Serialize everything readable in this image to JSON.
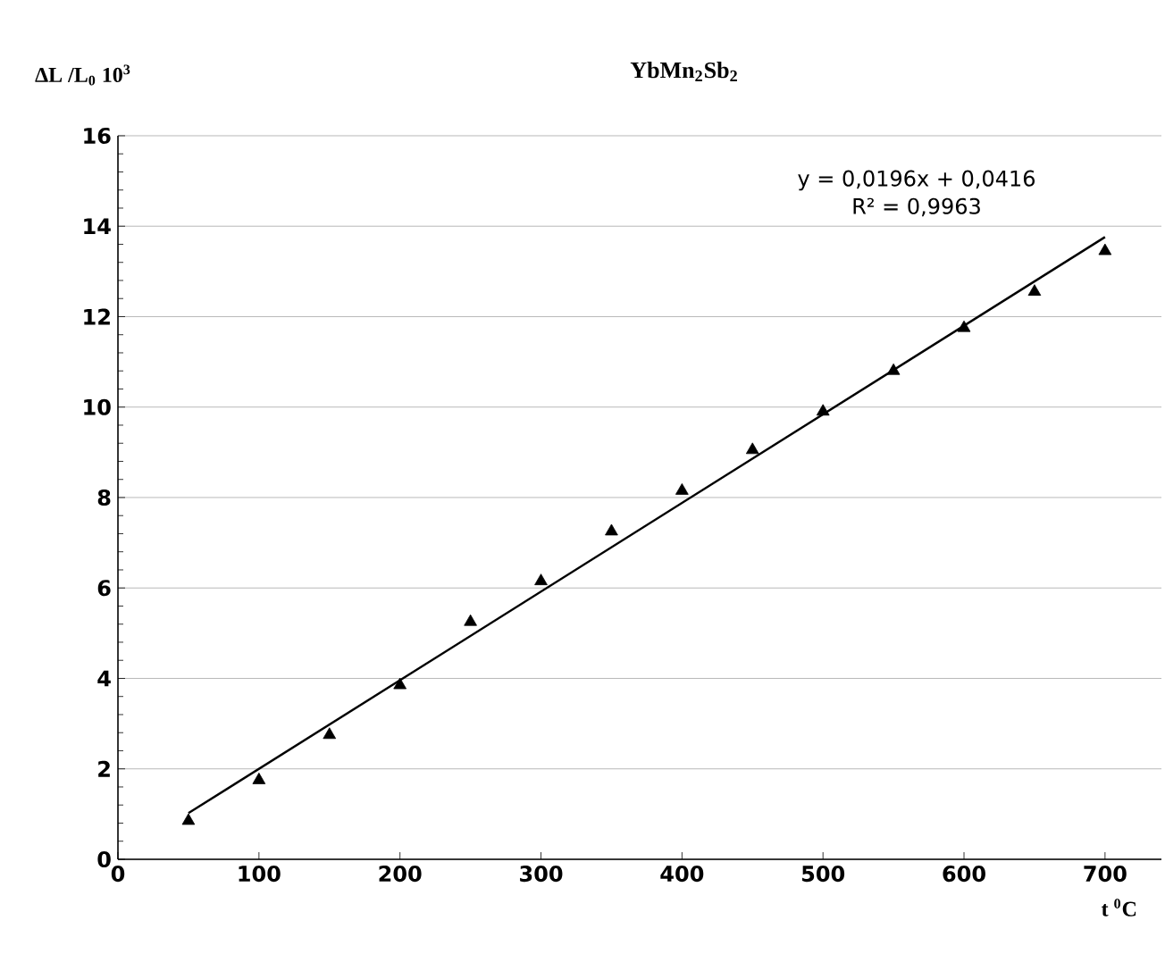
{
  "chart_data": {
    "type": "scatter",
    "title": "**YbMn$_{2}$Sb$_{2}$**",
    "ylabel": "**ΔL /L$_{0}$ 10$^{3}$**",
    "xlabel": "**t $^{0}$C**",
    "annotations": [
      "y = 0,0196x + 0,0416",
      "R² = 0,9963"
    ],
    "xlim": [
      0,
      740
    ],
    "xticks": [
      0,
      100,
      200,
      300,
      400,
      500,
      600,
      700
    ],
    "ylim": [
      0,
      16
    ],
    "yticks": [
      0,
      2,
      4,
      6,
      8,
      10,
      12,
      14,
      16
    ],
    "grid": "y",
    "marker": "triangle",
    "series": [
      {
        "color": "#000000",
        "x": [
          50,
          100,
          150,
          200,
          250,
          300,
          350,
          400,
          450,
          500,
          550,
          600,
          650,
          700
        ],
        "values": [
          0.85,
          1.75,
          2.75,
          3.85,
          5.25,
          6.15,
          7.25,
          8.15,
          9.05,
          9.9,
          10.8,
          11.75,
          12.55,
          13.45
        ]
      },
      {
        "type": "line",
        "color": "#000000",
        "marker": "none",
        "x": [
          50,
          700
        ],
        "values": [
          1.02,
          13.76
        ]
      }
    ]
  }
}
